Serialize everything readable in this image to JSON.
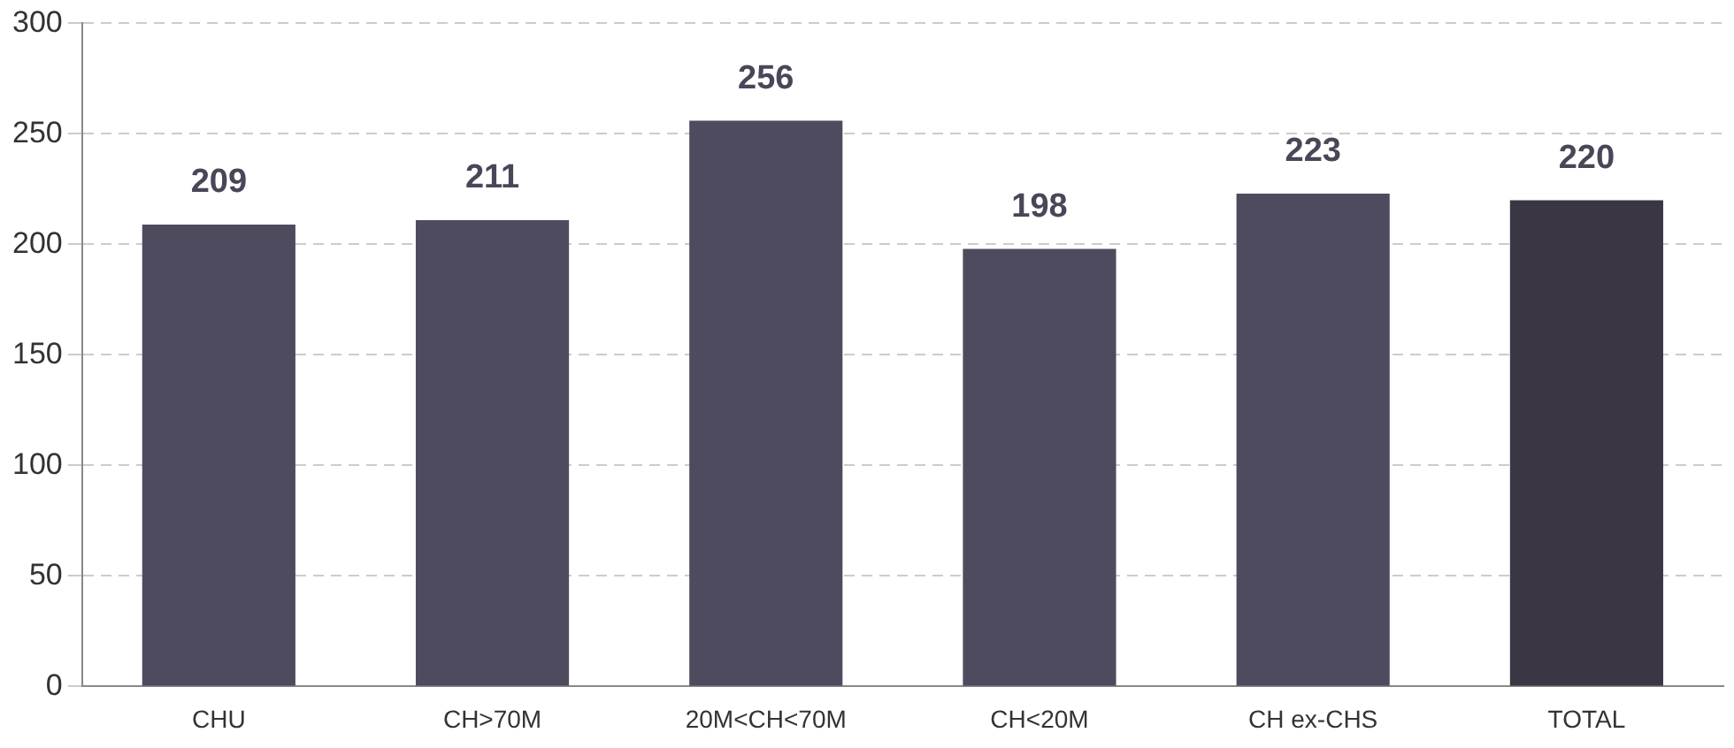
{
  "chart_data": {
    "type": "bar",
    "categories": [
      "CHU",
      "CH>70M",
      "20M<CH<70M",
      "CH<20M",
      "CH ex-CHS",
      "TOTAL"
    ],
    "values": [
      209,
      211,
      256,
      198,
      223,
      220
    ],
    "colors": [
      "#4f4b5f",
      "#4f4b5f",
      "#4f4b5f",
      "#4f4b5f",
      "#4f4b5f",
      "#3a3644"
    ],
    "ylim": [
      0,
      300
    ],
    "yticks": [
      0,
      50,
      100,
      150,
      200,
      250,
      300
    ],
    "grid": "y",
    "data_labels": true,
    "legend": false
  }
}
